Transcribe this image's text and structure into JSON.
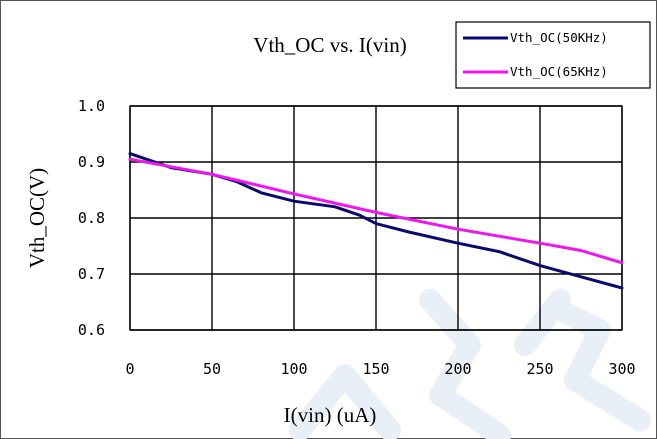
{
  "chart_data": {
    "type": "line",
    "title": "Vth_OC vs. I(vin)",
    "xlabel": "I(vin) (uA)",
    "ylabel": "Vth_OC(V)",
    "xlim": [
      0,
      300
    ],
    "ylim": [
      0.6,
      1.0
    ],
    "x_ticks": [
      "0",
      "50",
      "100",
      "150",
      "200",
      "250",
      "300"
    ],
    "y_ticks": [
      "0.6",
      "0.7",
      "0.8",
      "0.9",
      "1.0"
    ],
    "grid": true,
    "legend_position": "top-right",
    "series": [
      {
        "name": "Vth_OC(50KHz)",
        "color": "#0a0a6e",
        "points": [
          [
            0,
            0.915
          ],
          [
            10,
            0.905
          ],
          [
            25,
            0.89
          ],
          [
            50,
            0.878
          ],
          [
            65,
            0.865
          ],
          [
            80,
            0.845
          ],
          [
            100,
            0.83
          ],
          [
            125,
            0.82
          ],
          [
            140,
            0.805
          ],
          [
            150,
            0.79
          ],
          [
            170,
            0.775
          ],
          [
            200,
            0.755
          ],
          [
            225,
            0.74
          ],
          [
            250,
            0.715
          ],
          [
            275,
            0.695
          ],
          [
            300,
            0.675
          ]
        ]
      },
      {
        "name": "Vth_OC(65KHz)",
        "color": "#ee16ee",
        "points": [
          [
            0,
            0.905
          ],
          [
            50,
            0.878
          ],
          [
            100,
            0.843
          ],
          [
            150,
            0.81
          ],
          [
            200,
            0.78
          ],
          [
            250,
            0.755
          ],
          [
            275,
            0.742
          ],
          [
            300,
            0.72
          ]
        ]
      }
    ]
  }
}
